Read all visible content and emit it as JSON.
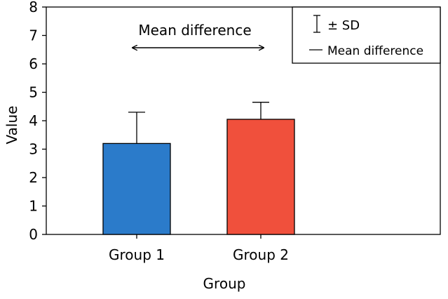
{
  "chart_data": {
    "type": "bar",
    "title": "",
    "xlabel": "Group",
    "ylabel": "Value",
    "ylim": [
      0,
      8
    ],
    "yticks": [
      0,
      1,
      2,
      3,
      4,
      5,
      6,
      7,
      8
    ],
    "categories": [
      "Group 1",
      "Group 2"
    ],
    "values": [
      3.2,
      4.05
    ],
    "errors": [
      1.1,
      0.6
    ],
    "colors": [
      "#2b7bca",
      "#f0503c"
    ],
    "annotation": "Mean difference",
    "legend": {
      "position": "top-right",
      "entries": [
        {
          "symbol": "errorbar",
          "label": "± SD"
        },
        {
          "symbol": "line",
          "label": "Mean difference"
        }
      ]
    }
  }
}
